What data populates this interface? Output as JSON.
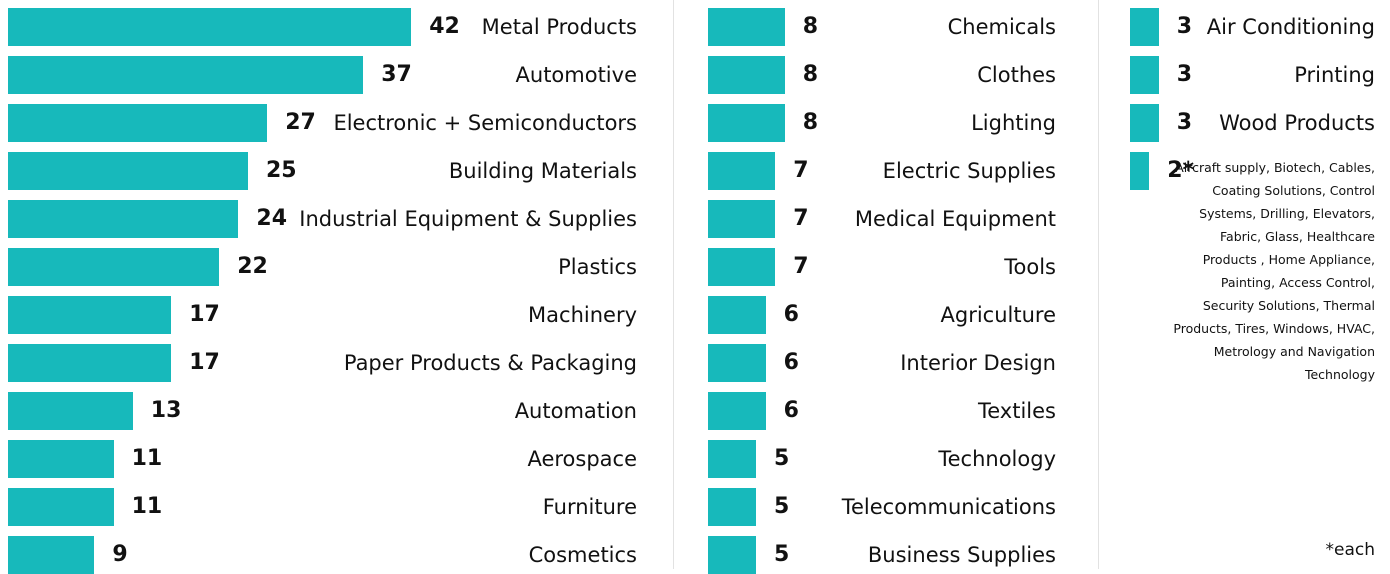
{
  "chart_data": {
    "type": "bar",
    "color": "#17b9bb",
    "categories": [
      "Metal Products",
      "Automotive",
      "Electronic + Semiconductors",
      "Building Materials",
      "Industrial Equipment & Supplies",
      "Plastics",
      "Machinery",
      "Paper Products & Packaging",
      "Automation",
      "Aerospace",
      "Furniture",
      "Cosmetics",
      "Chemicals",
      "Clothes",
      "Lighting",
      "Electric Supplies",
      "Medical Equipment",
      "Tools",
      "Agriculture",
      "Interior Design",
      "Textiles",
      "Technology",
      "Telecommunications",
      "Business Supplies",
      "Air Conditioning",
      "Printing",
      "Wood Products",
      "Aircraft supply, Biotech, Cables, Coating Solutions, Control Systems, Drilling, Elevators, Fabric, Glass, Healthcare Products , Home Appliance, Painting, Access Control, Security Solutions, Thermal Products, Tires, Windows, HVAC, Metrology and Navigation Technology"
    ],
    "values": [
      42,
      37,
      27,
      25,
      24,
      22,
      17,
      17,
      13,
      11,
      11,
      9,
      8,
      8,
      8,
      7,
      7,
      7,
      6,
      6,
      6,
      5,
      5,
      5,
      3,
      3,
      3,
      2
    ],
    "value_labels": [
      "42",
      "37",
      "27",
      "25",
      "24",
      "22",
      "17",
      "17",
      "13",
      "11",
      "11",
      "9",
      "8",
      "8",
      "8",
      "7",
      "7",
      "7",
      "6",
      "6",
      "6",
      "5",
      "5",
      "5",
      "3",
      "3",
      "3",
      "2*"
    ],
    "note": "*each"
  }
}
